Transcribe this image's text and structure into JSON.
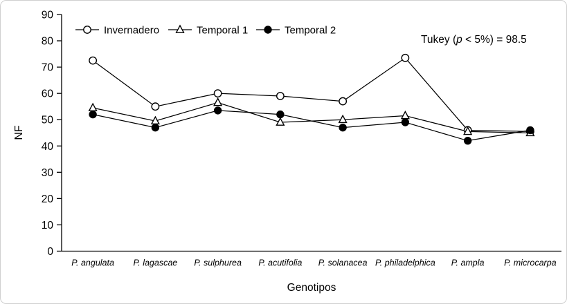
{
  "frame": {
    "background_color": "#ffffff",
    "border_color": "#cfcfcf"
  },
  "chart_data": {
    "type": "line",
    "title": "",
    "xlabel": "Genotipos",
    "ylabel": "NF",
    "ylim": [
      0,
      90
    ],
    "ytick_step": 10,
    "grid": false,
    "legend_position": "top-inside",
    "line_color": "#000000",
    "categories": [
      "P. angulata",
      "P. lagascae",
      "P. sulphurea",
      "P. acutifolia",
      "P. solanacea",
      "P. philadelphica",
      "P. ampla",
      "P. microcarpa"
    ],
    "series": [
      {
        "name": "Invernadero",
        "marker": "circle-open-icon",
        "values": [
          72.5,
          55,
          60,
          59,
          57,
          73.5,
          46,
          45.5
        ]
      },
      {
        "name": "Temporal 1",
        "marker": "triangle-open-icon",
        "values": [
          54.5,
          49.5,
          56.5,
          49,
          50,
          51.5,
          45.5,
          45
        ]
      },
      {
        "name": "Temporal 2",
        "marker": "circle-filled-icon",
        "values": [
          52,
          47,
          53.5,
          52,
          47,
          49,
          42,
          46
        ]
      }
    ],
    "annotation": {
      "prefix": "Tukey (",
      "italic": "p",
      "suffix": " < 5%) = 98.5"
    }
  }
}
